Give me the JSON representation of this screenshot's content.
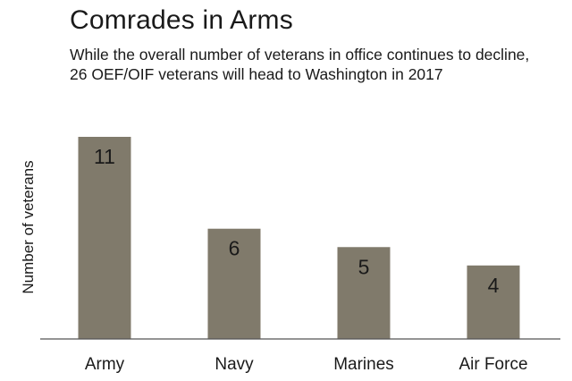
{
  "chart_data": {
    "type": "bar",
    "title": "Comrades in Arms",
    "subtitle": "While the overall number of veterans in office continues to decline, 26 OEF/OIF veterans will head to Washington in 2017",
    "xlabel": "",
    "ylabel": "Number of veterans",
    "categories": [
      "Army",
      "Navy",
      "Marines",
      "Air Force"
    ],
    "values": [
      11,
      6,
      5,
      4
    ],
    "data_labels": [
      "11",
      "6",
      "5",
      "4"
    ],
    "ylim": [
      0,
      11
    ],
    "grid": false,
    "legend": "none",
    "bar_color": "#807a6b",
    "axis_color": "#555555"
  }
}
